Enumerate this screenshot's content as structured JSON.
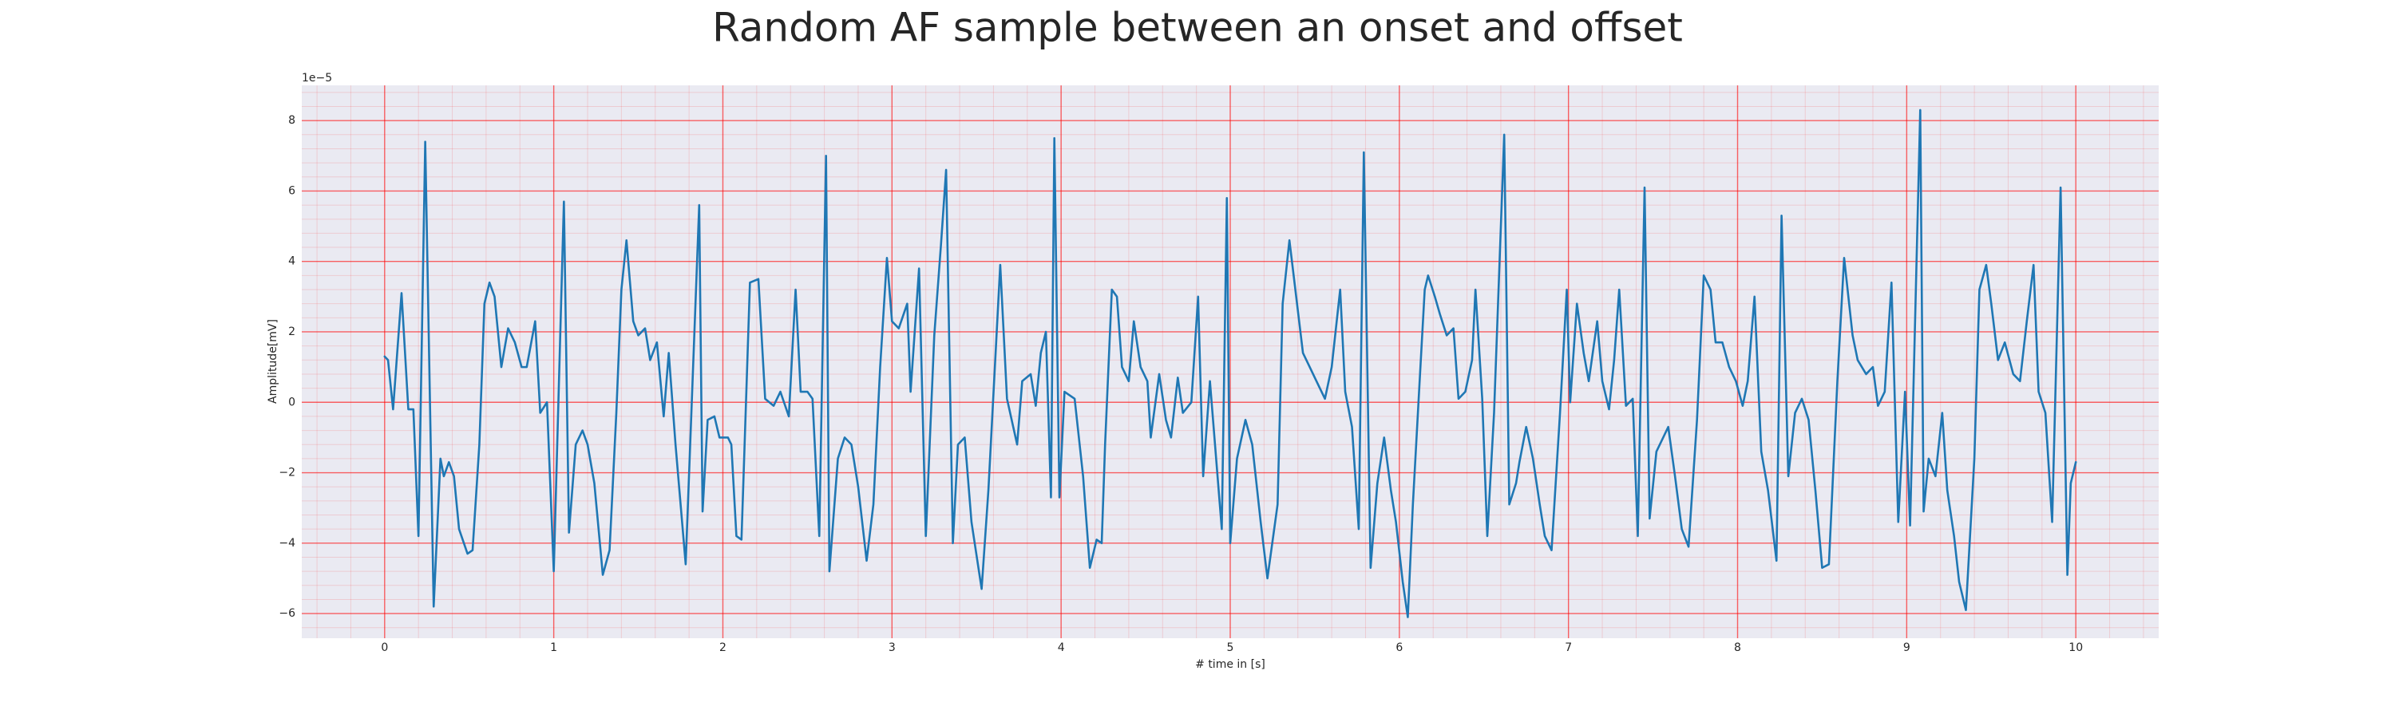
{
  "chart_data": {
    "type": "line",
    "title": "Random AF sample between an onset and offset",
    "x_label": "# time in [s]",
    "y_label": "Amplitude[mV]",
    "y_offset_label": "1e−5",
    "color": "#1f77b4",
    "background": "#eaeaf2",
    "grid": true,
    "minor_grid": true,
    "grid_color": "#ff0000",
    "xlim": [
      -0.49,
      10.49
    ],
    "ylim": [
      -6.7,
      9.0
    ],
    "xticks": [
      0,
      1,
      2,
      3,
      4,
      5,
      6,
      7,
      8,
      9,
      10
    ],
    "yticks": [
      {
        "value": -6,
        "label": "−6"
      },
      {
        "value": -4,
        "label": "−4"
      },
      {
        "value": -2,
        "label": "−2"
      },
      0,
      2,
      4,
      6,
      8
    ],
    "x": [
      0,
      0.02,
      0.05,
      0.1,
      0.14,
      0.17,
      0.2,
      0.24,
      0.29,
      0.33,
      0.35,
      0.38,
      0.41,
      0.44,
      0.49,
      0.52,
      0.56,
      0.59,
      0.62,
      0.65,
      0.69,
      0.73,
      0.77,
      0.81,
      0.84,
      0.89,
      0.92,
      0.96,
      1.0,
      1.06,
      1.09,
      1.13,
      1.17,
      1.2,
      1.24,
      1.29,
      1.33,
      1.37,
      1.4,
      1.43,
      1.47,
      1.5,
      1.54,
      1.57,
      1.61,
      1.65,
      1.68,
      1.72,
      1.78,
      1.86,
      1.88,
      1.91,
      1.95,
      1.98,
      2.03,
      2.05,
      2.08,
      2.11,
      2.16,
      2.21,
      2.25,
      2.3,
      2.34,
      2.39,
      2.43,
      2.46,
      2.5,
      2.53,
      2.57,
      2.61,
      2.63,
      2.68,
      2.72,
      2.76,
      2.8,
      2.85,
      2.89,
      2.93,
      2.97,
      3.0,
      3.04,
      3.09,
      3.11,
      3.16,
      3.2,
      3.25,
      3.29,
      3.32,
      3.36,
      3.39,
      3.43,
      3.47,
      3.53,
      3.57,
      3.64,
      3.68,
      3.74,
      3.77,
      3.82,
      3.85,
      3.88,
      3.91,
      3.94,
      3.96,
      3.99,
      4.02,
      4.05,
      4.08,
      4.13,
      4.17,
      4.21,
      4.24,
      4.26,
      4.3,
      4.33,
      4.36,
      4.4,
      4.43,
      4.47,
      4.51,
      4.53,
      4.58,
      4.62,
      4.65,
      4.69,
      4.72,
      4.77,
      4.81,
      4.84,
      4.88,
      4.95,
      4.98,
      5.0,
      5.04,
      5.09,
      5.13,
      5.18,
      5.22,
      5.28,
      5.31,
      5.35,
      5.38,
      5.43,
      5.47,
      5.51,
      5.56,
      5.6,
      5.65,
      5.68,
      5.72,
      5.76,
      5.79,
      5.83,
      5.87,
      5.91,
      5.95,
      5.98,
      6.02,
      6.05,
      6.08,
      6.12,
      6.15,
      6.17,
      6.21,
      6.24,
      6.28,
      6.32,
      6.35,
      6.39,
      6.43,
      6.45,
      6.49,
      6.52,
      6.56,
      6.62,
      6.65,
      6.69,
      6.71,
      6.75,
      6.79,
      6.83,
      6.86,
      6.9,
      6.95,
      6.99,
      7.01,
      7.05,
      7.09,
      7.12,
      7.17,
      7.2,
      7.24,
      7.27,
      7.3,
      7.34,
      7.38,
      7.41,
      7.45,
      7.48,
      7.52,
      7.56,
      7.59,
      7.63,
      7.67,
      7.71,
      7.76,
      7.8,
      7.84,
      7.87,
      7.91,
      7.95,
      7.99,
      8.03,
      8.06,
      8.1,
      8.14,
      8.18,
      8.23,
      8.26,
      8.3,
      8.34,
      8.38,
      8.42,
      8.46,
      8.5,
      8.54,
      8.59,
      8.63,
      8.68,
      8.71,
      8.76,
      8.8,
      8.83,
      8.87,
      8.91,
      8.95,
      8.99,
      9.02,
      9.08,
      9.1,
      9.13,
      9.17,
      9.21,
      9.24,
      9.28,
      9.31,
      9.35,
      9.4,
      9.43,
      9.47,
      9.5,
      9.54,
      9.58,
      9.63,
      9.67,
      9.71,
      9.75,
      9.78,
      9.82,
      9.86,
      9.91,
      9.95,
      9.97,
      10.0
    ],
    "values": [
      1.3,
      1.2,
      -0.2,
      3.1,
      -0.2,
      -0.2,
      -3.8,
      7.4,
      -5.8,
      -1.6,
      -2.1,
      -1.7,
      -2.1,
      -3.6,
      -4.3,
      -4.2,
      -1.2,
      2.8,
      3.4,
      3.0,
      1.0,
      2.1,
      1.7,
      1.0,
      1.0,
      2.3,
      -0.3,
      0.0,
      -4.8,
      5.7,
      -3.7,
      -1.2,
      -0.8,
      -1.2,
      -2.3,
      -4.9,
      -4.2,
      -0.3,
      3.2,
      4.6,
      2.3,
      1.9,
      2.1,
      1.2,
      1.7,
      -0.4,
      1.4,
      -1.2,
      -4.6,
      5.6,
      -3.1,
      -0.5,
      -0.4,
      -1.0,
      -1.0,
      -1.2,
      -3.8,
      -3.9,
      3.4,
      3.5,
      0.1,
      -0.1,
      0.3,
      -0.4,
      3.2,
      0.3,
      0.3,
      0.1,
      -3.8,
      7.0,
      -4.8,
      -1.6,
      -1.0,
      -1.2,
      -2.4,
      -4.5,
      -2.9,
      1.0,
      4.1,
      2.3,
      2.1,
      2.8,
      0.3,
      3.8,
      -3.8,
      1.9,
      4.5,
      6.6,
      -4.0,
      -1.2,
      -1.0,
      -3.4,
      -5.3,
      -2.5,
      3.9,
      0.1,
      -1.2,
      0.6,
      0.8,
      -0.1,
      1.4,
      2.0,
      -2.7,
      7.5,
      -2.7,
      0.3,
      0.2,
      0.1,
      -2.1,
      -4.7,
      -3.9,
      -4.0,
      -1.2,
      3.2,
      3.0,
      1.0,
      0.6,
      2.3,
      1.0,
      0.6,
      -1.0,
      0.8,
      -0.5,
      -1.0,
      0.7,
      -0.3,
      0.0,
      3.0,
      -2.1,
      0.6,
      -3.6,
      5.8,
      -4.0,
      -1.6,
      -0.5,
      -1.2,
      -3.4,
      -5.0,
      -2.9,
      2.8,
      4.6,
      3.4,
      1.4,
      1.0,
      0.6,
      0.1,
      1.0,
      3.2,
      0.3,
      -0.7,
      -3.6,
      7.1,
      -4.7,
      -2.3,
      -1.0,
      -2.5,
      -3.4,
      -5.1,
      -6.1,
      -2.9,
      0.6,
      3.2,
      3.6,
      3.0,
      2.5,
      1.9,
      2.1,
      0.1,
      0.3,
      1.2,
      3.2,
      0.1,
      -3.8,
      -0.3,
      7.6,
      -2.9,
      -2.3,
      -1.7,
      -0.7,
      -1.6,
      -2.9,
      -3.8,
      -4.2,
      -0.3,
      3.2,
      0.0,
      2.8,
      1.4,
      0.6,
      2.3,
      0.6,
      -0.2,
      1.2,
      3.2,
      -0.1,
      0.1,
      -3.8,
      6.1,
      -3.3,
      -1.4,
      -1.0,
      -0.7,
      -2.1,
      -3.6,
      -4.1,
      -0.5,
      3.6,
      3.2,
      1.7,
      1.7,
      1.0,
      0.6,
      -0.1,
      0.6,
      3.0,
      -1.4,
      -2.5,
      -4.5,
      5.3,
      -2.1,
      -0.3,
      0.1,
      -0.5,
      -2.5,
      -4.7,
      -4.6,
      0.6,
      4.1,
      1.9,
      1.2,
      0.8,
      1.0,
      -0.1,
      0.3,
      3.4,
      -3.4,
      0.3,
      -3.5,
      8.3,
      -3.1,
      -1.6,
      -2.1,
      -0.3,
      -2.5,
      -3.8,
      -5.1,
      -5.9,
      -1.6,
      3.2,
      3.9,
      2.8,
      1.2,
      1.7,
      0.8,
      0.6,
      2.3,
      3.9,
      0.3,
      -0.3,
      -3.4,
      6.1,
      -4.9,
      -2.3,
      -1.7
    ]
  }
}
